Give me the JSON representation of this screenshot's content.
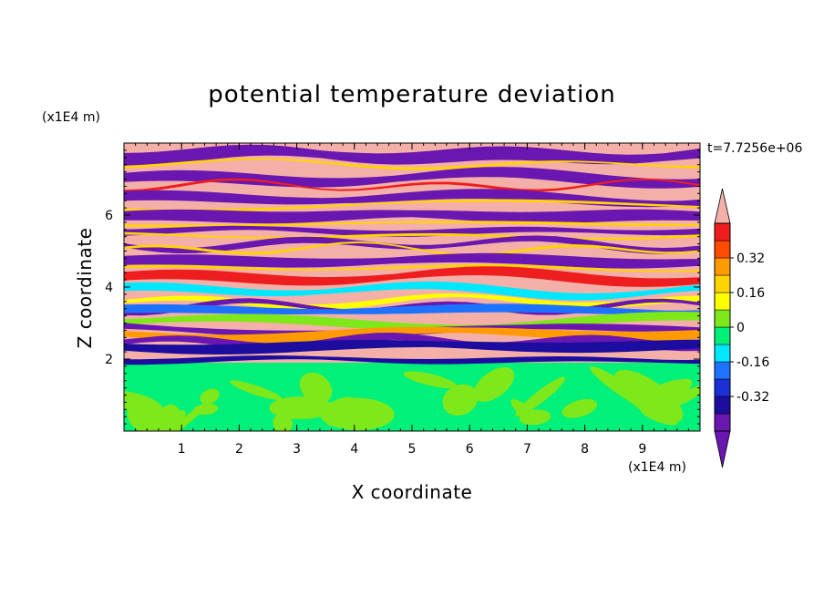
{
  "chart_data": {
    "type": "heatmap",
    "title": "potential temperature deviation",
    "xlabel": "X coordinate",
    "ylabel": "Z coordinate",
    "x_unit": "(x1E4 m)",
    "y_unit": "(x1E4 m)",
    "time_label": "t=7.7256e+06",
    "xlim": [
      0,
      10
    ],
    "ylim": [
      0,
      8
    ],
    "x_ticks": [
      "1",
      "2",
      "3",
      "4",
      "5",
      "6",
      "7",
      "8",
      "9"
    ],
    "y_ticks": [
      "2",
      "4",
      "6"
    ],
    "x_tick_values": [
      1,
      2,
      3,
      4,
      5,
      6,
      7,
      8,
      9
    ],
    "y_tick_values": [
      2,
      4,
      6
    ],
    "colorbar": {
      "levels": [
        -0.48,
        -0.4,
        -0.32,
        -0.24,
        -0.16,
        -0.08,
        0,
        0.08,
        0.16,
        0.24,
        0.32,
        0.4,
        0.48
      ],
      "colors": [
        "#6a16b0",
        "#1c0d9e",
        "#1b2fd6",
        "#1d73ff",
        "#00e8ff",
        "#00f07a",
        "#7fe81a",
        "#ffff00",
        "#ffd400",
        "#ff9a00",
        "#ff4a00",
        "#ee1e1e",
        "#f4b0a8"
      ],
      "under_color": "#6a16b0",
      "over_color": "#f4b0a8",
      "labels": [
        "0.32",
        "0.16",
        "0",
        "-0.16",
        "-0.32"
      ],
      "label_values": [
        0.32,
        0.16,
        0,
        -0.16,
        -0.32
      ]
    },
    "stable_layer_top": 1.9,
    "layering": "Horizontal bands alternating between positive (pink) and negative (purple) deviations in the upper layer above about 2 (x1E4 m); near-zero values (green) with lighter patches below."
  }
}
